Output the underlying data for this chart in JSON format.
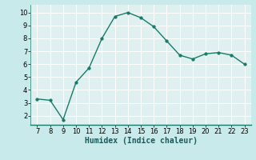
{
  "x": [
    7,
    8,
    9,
    10,
    11,
    12,
    13,
    14,
    15,
    16,
    17,
    18,
    19,
    20,
    21,
    22,
    23
  ],
  "y": [
    3.3,
    3.2,
    1.7,
    4.6,
    5.7,
    8.0,
    9.7,
    10.0,
    9.6,
    8.9,
    7.8,
    6.7,
    6.4,
    6.8,
    6.9,
    6.7,
    6.0
  ],
  "line_color": "#1a7a6a",
  "marker_color": "#1a7a6a",
  "bg_color": "#c8eaea",
  "plot_bg_color": "#dff0f0",
  "grid_color": "#ffffff",
  "xlabel": "Humidex (Indice chaleur)",
  "xlim": [
    6.5,
    23.5
  ],
  "ylim": [
    1.3,
    10.6
  ],
  "xticks": [
    7,
    8,
    9,
    10,
    11,
    12,
    13,
    14,
    15,
    16,
    17,
    18,
    19,
    20,
    21,
    22,
    23
  ],
  "yticks": [
    2,
    3,
    4,
    5,
    6,
    7,
    8,
    9,
    10
  ],
  "tick_fontsize": 6.0,
  "xlabel_fontsize": 7.0
}
